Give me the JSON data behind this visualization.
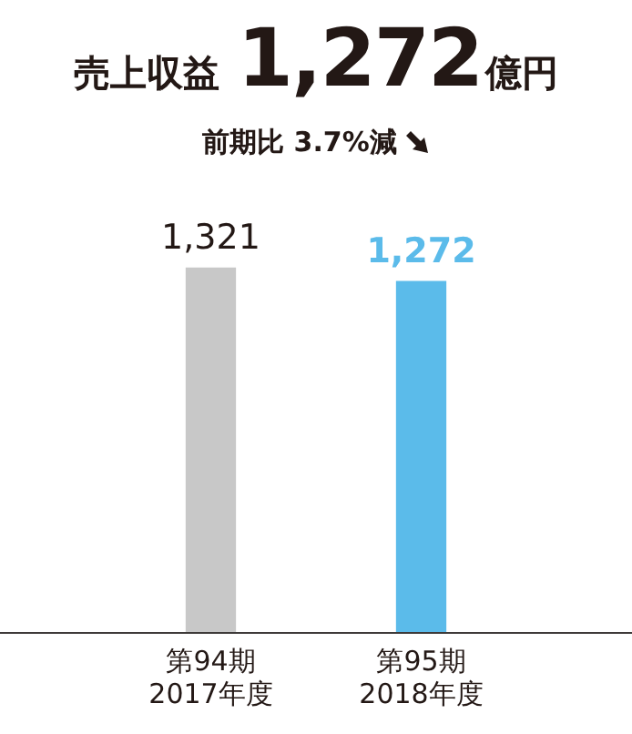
{
  "chart_data": {
    "type": "bar",
    "title": "売上収益1,272億円",
    "subtitle": "前期比 3.7%減",
    "categories": [
      "第94期\n2017年度",
      "第95期\n2018年度"
    ],
    "values": [
      1321,
      1272
    ],
    "colors": [
      "#c8c8c8",
      "#5bbbea"
    ],
    "data_labels": true,
    "value_labels": [
      "1,321",
      "1,272"
    ],
    "legend": false
  }
}
